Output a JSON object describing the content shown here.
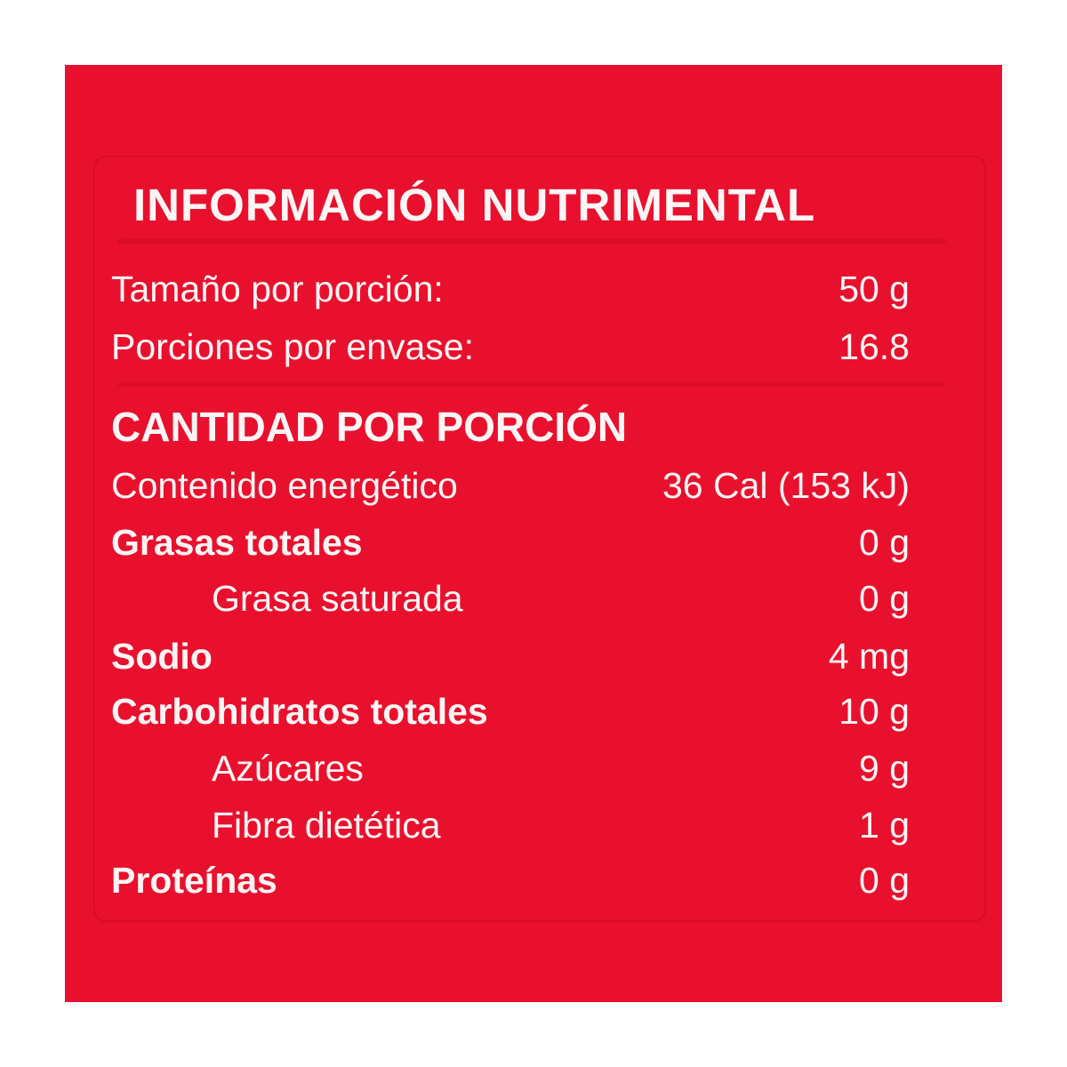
{
  "title": "INFORMACIÓN NUTRIMENTAL",
  "serving": [
    {
      "label": "Tamaño por porción:",
      "value": "50 g"
    },
    {
      "label": "Porciones por envase:",
      "value": "16.8"
    }
  ],
  "section_title": "CANTIDAD POR PORCIÓN",
  "nutrients": [
    {
      "label": "Contenido energético",
      "value": "36 Cal (153 kJ)"
    },
    {
      "label": "Grasas totales",
      "value": "0 g"
    },
    {
      "label": "Grasa saturada",
      "value": "0 g"
    },
    {
      "label": "Sodio",
      "value": "4 mg"
    },
    {
      "label": "Carbohidratos totales",
      "value": "10 g"
    },
    {
      "label": "Azúcares",
      "value": "9 g"
    },
    {
      "label": "Fibra dietética",
      "value": "1 g"
    },
    {
      "label": "Proteínas",
      "value": "0 g"
    }
  ],
  "colors": {
    "background": "#e9102e",
    "text": "#fff5f5"
  }
}
